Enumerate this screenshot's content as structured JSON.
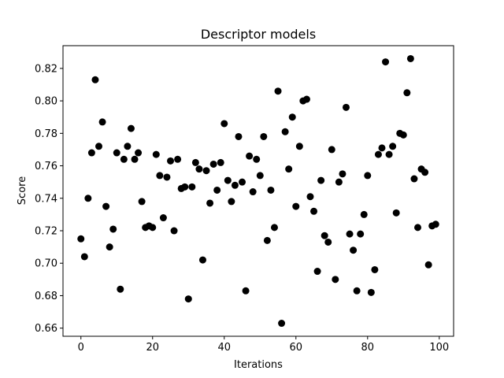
{
  "chart_data": {
    "type": "scatter",
    "title": "Descriptor models",
    "xlabel": "Iterations",
    "ylabel": "Score",
    "xlim": [
      -5,
      104
    ],
    "ylim": [
      0.655,
      0.834
    ],
    "xticks": [
      0,
      20,
      40,
      60,
      80,
      100
    ],
    "xtick_labels": [
      "0",
      "20",
      "40",
      "60",
      "80",
      "100"
    ],
    "yticks": [
      0.66,
      0.68,
      0.7,
      0.72,
      0.74,
      0.76,
      0.78,
      0.8,
      0.82
    ],
    "ytick_labels": [
      "0.66",
      "0.68",
      "0.70",
      "0.72",
      "0.74",
      "0.76",
      "0.78",
      "0.80",
      "0.82"
    ],
    "grid": false,
    "marker_color": "#000000",
    "x": [
      0,
      1,
      2,
      3,
      4,
      5,
      6,
      7,
      8,
      9,
      10,
      11,
      12,
      13,
      14,
      15,
      16,
      17,
      18,
      19,
      20,
      21,
      22,
      23,
      24,
      25,
      26,
      27,
      28,
      29,
      30,
      31,
      32,
      33,
      34,
      35,
      36,
      37,
      38,
      39,
      40,
      41,
      42,
      43,
      44,
      45,
      46,
      47,
      48,
      49,
      50,
      51,
      52,
      53,
      54,
      55,
      56,
      57,
      58,
      59,
      60,
      61,
      62,
      63,
      64,
      65,
      66,
      67,
      68,
      69,
      70,
      71,
      72,
      73,
      74,
      75,
      76,
      77,
      78,
      79,
      80,
      81,
      82,
      83,
      84,
      85,
      86,
      87,
      88,
      89,
      90,
      91,
      92,
      93,
      94,
      95,
      96,
      97,
      98,
      99
    ],
    "y": [
      0.715,
      0.704,
      0.74,
      0.768,
      0.813,
      0.772,
      0.787,
      0.735,
      0.71,
      0.721,
      0.768,
      0.684,
      0.764,
      0.772,
      0.783,
      0.764,
      0.768,
      0.738,
      0.722,
      0.723,
      0.722,
      0.767,
      0.754,
      0.728,
      0.753,
      0.763,
      0.72,
      0.764,
      0.746,
      0.747,
      0.678,
      0.747,
      0.762,
      0.758,
      0.702,
      0.757,
      0.737,
      0.761,
      0.745,
      0.762,
      0.786,
      0.751,
      0.738,
      0.748,
      0.778,
      0.75,
      0.683,
      0.766,
      0.744,
      0.764,
      0.754,
      0.778,
      0.714,
      0.745,
      0.722,
      0.806,
      0.663,
      0.781,
      0.758,
      0.79,
      0.735,
      0.772,
      0.8,
      0.801,
      0.741,
      0.732,
      0.695,
      0.751,
      0.717,
      0.713,
      0.77,
      0.69,
      0.75,
      0.755,
      0.796,
      0.718,
      0.708,
      0.683,
      0.718,
      0.73,
      0.754,
      0.682,
      0.696,
      0.767,
      0.771,
      0.824,
      0.767,
      0.772,
      0.731,
      0.78,
      0.779,
      0.805,
      0.826,
      0.752,
      0.722,
      0.758,
      0.756,
      0.699,
      0.723,
      0.724
    ]
  }
}
